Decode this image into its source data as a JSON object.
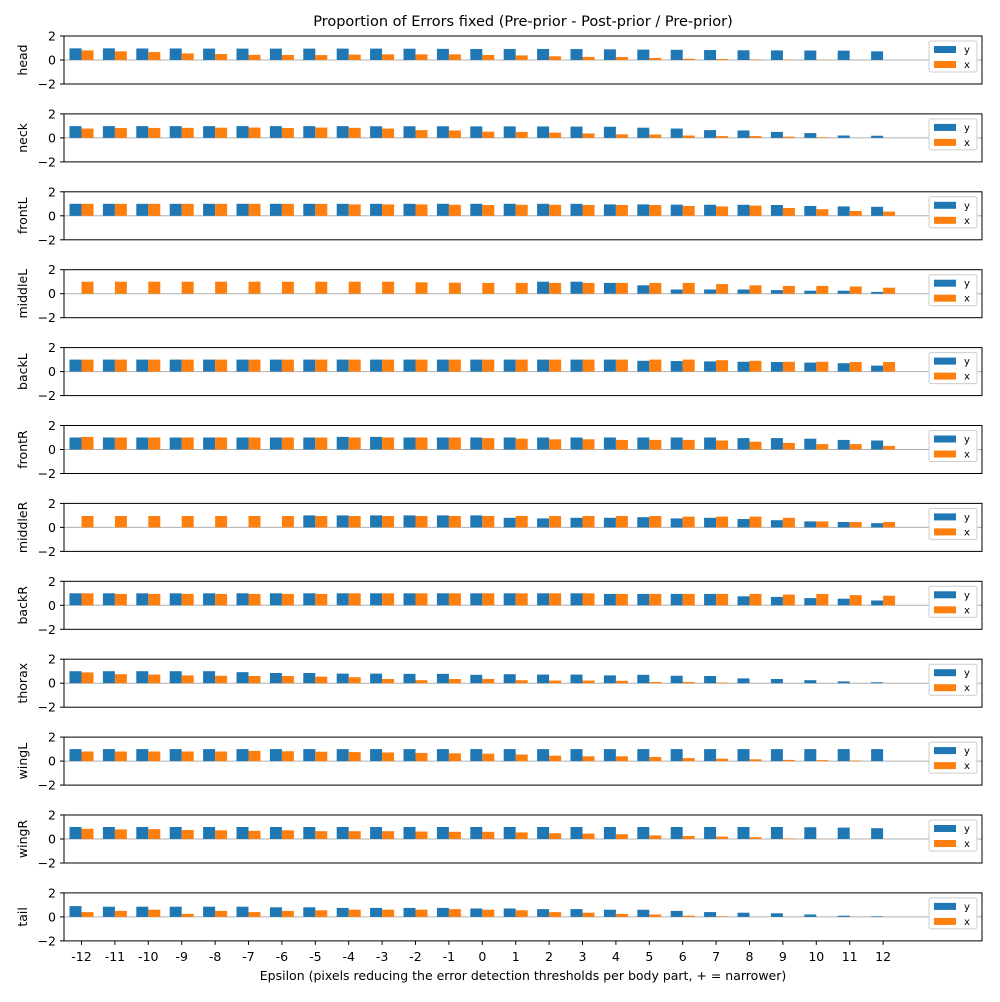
{
  "title": "Proportion of Errors fixed (Pre-prior - Post-prior / Pre-prior)",
  "xlabel": "Epsilon (pixels reducing the error detection thresholds per body part, + = narrower)",
  "colors": {
    "y": "#1f77b4",
    "x": "#ff7f0e",
    "zero_line": "#b0b0b0"
  },
  "legend": {
    "placement": "right",
    "labels": [
      "y",
      "x"
    ]
  },
  "chart_data": {
    "type": "bar",
    "categories": [
      "-12",
      "-11",
      "-10",
      "-9",
      "-8",
      "-7",
      "-6",
      "-5",
      "-4",
      "-3",
      "-2",
      "-1",
      "0",
      "1",
      "2",
      "3",
      "4",
      "5",
      "6",
      "7",
      "8",
      "9",
      "10",
      "11",
      "12"
    ],
    "ylim": [
      -2,
      2
    ],
    "yticks": [
      2,
      0,
      -2
    ],
    "subplots": [
      {
        "ylabel": "head",
        "series": [
          {
            "name": "y",
            "values": [
              0.97,
              0.97,
              0.96,
              0.96,
              0.95,
              0.95,
              0.95,
              0.95,
              0.95,
              0.95,
              0.94,
              0.93,
              0.92,
              0.92,
              0.92,
              0.91,
              0.89,
              0.87,
              0.85,
              0.83,
              0.81,
              0.8,
              0.79,
              0.78,
              0.72
            ]
          },
          {
            "name": "x",
            "values": [
              0.8,
              0.72,
              0.66,
              0.55,
              0.5,
              0.43,
              0.42,
              0.41,
              0.45,
              0.47,
              0.47,
              0.47,
              0.42,
              0.38,
              0.31,
              0.26,
              0.25,
              0.17,
              0.1,
              0.08,
              0.05,
              0.04,
              0.02,
              0.01,
              0
            ]
          }
        ]
      },
      {
        "ylabel": "neck",
        "series": [
          {
            "name": "y",
            "values": [
              0.98,
              0.98,
              0.98,
              0.98,
              0.98,
              0.98,
              0.98,
              0.98,
              0.98,
              0.97,
              0.97,
              0.97,
              0.96,
              0.96,
              0.95,
              0.94,
              0.93,
              0.85,
              0.78,
              0.65,
              0.62,
              0.5,
              0.4,
              0.2,
              0.18
            ]
          },
          {
            "name": "x",
            "values": [
              0.78,
              0.82,
              0.83,
              0.84,
              0.85,
              0.86,
              0.82,
              0.86,
              0.84,
              0.78,
              0.65,
              0.62,
              0.52,
              0.5,
              0.44,
              0.37,
              0.3,
              0.28,
              0.2,
              0.15,
              0.15,
              0.1,
              0.05,
              0,
              0
            ]
          }
        ]
      },
      {
        "ylabel": "frontL",
        "series": [
          {
            "name": "y",
            "values": [
              1,
              1,
              1,
              1,
              1,
              1,
              1,
              1,
              1,
              1,
              1,
              1,
              1,
              1,
              1,
              1,
              0.95,
              0.95,
              0.93,
              0.92,
              0.92,
              0.9,
              0.82,
              0.78,
              0.75
            ]
          },
          {
            "name": "x",
            "values": [
              1,
              1,
              1,
              1,
              1,
              1,
              1,
              1,
              0.95,
              0.95,
              0.95,
              0.92,
              0.9,
              0.92,
              0.92,
              0.9,
              0.9,
              0.9,
              0.82,
              0.78,
              0.85,
              0.65,
              0.55,
              0.4,
              0.35
            ]
          }
        ]
      },
      {
        "ylabel": "middleL",
        "series": [
          {
            "name": "y",
            "values": [
              0,
              0,
              0,
              0,
              0,
              0,
              0,
              0,
              0,
              0,
              0,
              0,
              0,
              0,
              1,
              1,
              0.9,
              0.7,
              0.35,
              0.35,
              0.35,
              0.3,
              0.25,
              0.25,
              0.15
            ]
          },
          {
            "name": "x",
            "values": [
              1,
              1,
              1,
              1,
              1,
              1,
              1,
              1,
              1,
              1,
              0.95,
              0.92,
              0.9,
              0.9,
              0.9,
              0.9,
              0.9,
              0.9,
              0.9,
              0.8,
              0.7,
              0.65,
              0.65,
              0.6,
              0.5
            ]
          }
        ]
      },
      {
        "ylabel": "backL",
        "series": [
          {
            "name": "y",
            "values": [
              1,
              1,
              1,
              1,
              1,
              1,
              1,
              1,
              1,
              1,
              1,
              1,
              1,
              1,
              1,
              1,
              1,
              0.9,
              0.88,
              0.85,
              0.82,
              0.8,
              0.75,
              0.7,
              0.5
            ]
          },
          {
            "name": "x",
            "values": [
              1,
              1,
              1,
              1,
              1,
              1,
              1,
              1,
              1,
              1,
              1,
              1,
              1,
              1,
              1,
              1,
              1,
              1,
              1,
              0.95,
              0.9,
              0.82,
              0.82,
              0.8,
              0.8
            ]
          }
        ]
      },
      {
        "ylabel": "frontR",
        "series": [
          {
            "name": "y",
            "values": [
              1,
              1,
              1,
              1,
              1,
              1,
              1,
              1,
              1.05,
              1.05,
              1,
              1,
              1,
              1,
              1,
              1,
              1,
              1,
              1,
              1,
              0.95,
              0.95,
              0.9,
              0.8,
              0.75
            ]
          },
          {
            "name": "x",
            "values": [
              1.05,
              1.0,
              1.0,
              1.0,
              1.0,
              1.0,
              1.0,
              1.0,
              1.0,
              1.0,
              1.0,
              1.0,
              0.95,
              0.9,
              0.85,
              0.85,
              0.8,
              0.8,
              0.8,
              0.75,
              0.65,
              0.55,
              0.45,
              0.45,
              0.3
            ]
          }
        ]
      },
      {
        "ylabel": "middleR",
        "series": [
          {
            "name": "y",
            "values": [
              0,
              0,
              0,
              0,
              0,
              0,
              0,
              1,
              1,
              1,
              1,
              1,
              1,
              0.8,
              0.75,
              0.8,
              0.8,
              0.85,
              0.75,
              0.8,
              0.7,
              0.6,
              0.5,
              0.45,
              0.35
            ]
          },
          {
            "name": "x",
            "values": [
              0.95,
              0.95,
              0.95,
              0.95,
              0.95,
              0.95,
              0.95,
              0.95,
              0.95,
              0.95,
              0.95,
              0.95,
              0.95,
              0.95,
              0.95,
              0.95,
              0.95,
              0.95,
              0.9,
              0.9,
              0.9,
              0.8,
              0.5,
              0.45,
              0.45
            ]
          }
        ]
      },
      {
        "ylabel": "backR",
        "series": [
          {
            "name": "y",
            "values": [
              1,
              1,
              1,
              1,
              1,
              1,
              1,
              1,
              1,
              1,
              1,
              1,
              1,
              1,
              1,
              1,
              0.95,
              0.95,
              0.95,
              0.95,
              0.75,
              0.7,
              0.6,
              0.55,
              0.4
            ]
          },
          {
            "name": "x",
            "values": [
              1,
              0.95,
              0.95,
              0.95,
              0.95,
              0.95,
              0.95,
              0.95,
              1,
              1,
              1,
              1,
              1,
              1,
              1,
              1,
              0.95,
              0.95,
              0.95,
              0.95,
              0.95,
              0.9,
              0.95,
              0.85,
              0.8
            ]
          }
        ]
      },
      {
        "ylabel": "thorax",
        "series": [
          {
            "name": "y",
            "values": [
              1,
              1,
              1,
              1,
              1,
              0.92,
              0.85,
              0.85,
              0.8,
              0.8,
              0.78,
              0.78,
              0.7,
              0.75,
              0.72,
              0.72,
              0.65,
              0.7,
              0.62,
              0.6,
              0.4,
              0.35,
              0.25,
              0.15,
              0.08
            ]
          },
          {
            "name": "x",
            "values": [
              0.9,
              0.75,
              0.72,
              0.65,
              0.62,
              0.6,
              0.6,
              0.55,
              0.5,
              0.35,
              0.25,
              0.35,
              0.35,
              0.25,
              0.22,
              0.22,
              0.2,
              0.1,
              0.1,
              0.05,
              0,
              0,
              0,
              0,
              0
            ]
          }
        ]
      },
      {
        "ylabel": "wingL",
        "series": [
          {
            "name": "y",
            "values": [
              1,
              1,
              1,
              1,
              1,
              1,
              1,
              1,
              1,
              1,
              1,
              1,
              1,
              1,
              1,
              1,
              1,
              1,
              1,
              1,
              1,
              1,
              1,
              1,
              1
            ]
          },
          {
            "name": "x",
            "values": [
              0.8,
              0.8,
              0.8,
              0.8,
              0.8,
              0.85,
              0.82,
              0.78,
              0.75,
              0.72,
              0.68,
              0.65,
              0.62,
              0.55,
              0.45,
              0.4,
              0.4,
              0.35,
              0.25,
              0.2,
              0.15,
              0.1,
              0.08,
              0.05,
              0
            ]
          }
        ]
      },
      {
        "ylabel": "wingR",
        "series": [
          {
            "name": "y",
            "values": [
              1,
              1,
              1,
              1,
              1,
              1,
              1,
              1,
              1,
              1,
              1,
              1,
              1,
              1,
              1,
              1,
              1,
              1,
              1,
              1,
              1,
              1,
              0.98,
              0.95,
              0.9
            ]
          },
          {
            "name": "x",
            "values": [
              0.85,
              0.8,
              0.82,
              0.75,
              0.72,
              0.68,
              0.72,
              0.65,
              0.65,
              0.65,
              0.62,
              0.6,
              0.6,
              0.55,
              0.48,
              0.45,
              0.4,
              0.3,
              0.25,
              0.2,
              0.15,
              0.05,
              0.02,
              0,
              0
            ]
          }
        ]
      },
      {
        "ylabel": "tail",
        "series": [
          {
            "name": "y",
            "values": [
              0.9,
              0.85,
              0.85,
              0.85,
              0.85,
              0.85,
              0.8,
              0.8,
              0.75,
              0.75,
              0.75,
              0.75,
              0.7,
              0.7,
              0.65,
              0.65,
              0.6,
              0.6,
              0.5,
              0.4,
              0.35,
              0.3,
              0.2,
              0.1,
              0.05
            ]
          },
          {
            "name": "x",
            "values": [
              0.4,
              0.5,
              0.6,
              0.25,
              0.5,
              0.4,
              0.5,
              0.55,
              0.6,
              0.6,
              0.6,
              0.65,
              0.6,
              0.55,
              0.4,
              0.35,
              0.25,
              0.2,
              0.1,
              0.05,
              0,
              0,
              0,
              0,
              0
            ]
          }
        ]
      }
    ]
  }
}
